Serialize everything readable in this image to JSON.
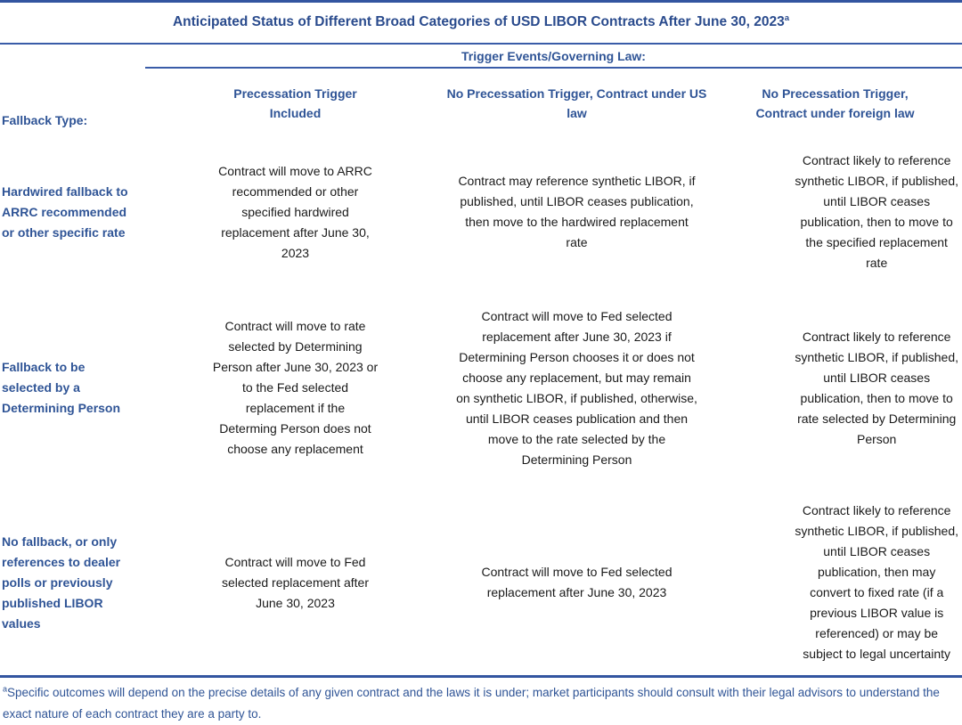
{
  "title": {
    "text": "Anticipated Status of Different Broad Categories of USD LIBOR Contracts After June 30, 2023",
    "superscript": "a"
  },
  "table": {
    "group_header": "Trigger Events/Governing Law:",
    "row_header_label": "Fallback Type:",
    "columns": [
      "Precessation Trigger\nIncluded",
      "No Precessation Trigger, Contract under US\nlaw",
      "No Precessation Trigger,\nContract under foreign law"
    ],
    "rows": [
      {
        "label": "Hardwired fallback to\nARRC recommended\nor other specific rate",
        "cells": [
          "Contract will move to ARRC\nrecommended or other\nspecified hardwired\nreplacement after June 30,\n2023",
          "Contract may reference synthetic LIBOR, if\npublished, until LIBOR ceases publication,\nthen  move to the hardwired replacement\nrate",
          "Contract likely to reference\nsynthetic LIBOR, if published,\nuntil LIBOR ceases\npublication, then to move to\nthe specified replacement\nrate"
        ]
      },
      {
        "label": "Fallback to be\nselected by a\nDetermining Person",
        "cells": [
          "Contract will move to rate\nselected by Determining\nPerson after June 30, 2023 or\nto the Fed selected\nreplacement if the\nDeterming Person does not\nchoose any replacement",
          "Contract will move to Fed selected\nreplacement after June 30, 2023 if\nDetermining Person chooses it or does not\nchoose any replacement, but may remain\non synthetic LIBOR, if published, otherwise,\nuntil LIBOR ceases publication and then\nmove to the rate selected by the\nDetermining Person",
          "Contract likely to reference\nsynthetic LIBOR, if published,\nuntil LIBOR ceases\npublication, then to move to\nrate selected by Determining\nPerson"
        ]
      },
      {
        "label": "No fallback, or only\nreferences to dealer\npolls or previously\npublished LIBOR\nvalues",
        "cells": [
          "Contract will move to Fed\nselected replacement after\nJune 30, 2023",
          "Contract will move to Fed selected\nreplacement after June 30, 2023",
          "Contract likely to reference\nsynthetic LIBOR, if published,\nuntil LIBOR ceases\npublication, then may\nconvert to fixed rate (if a\nprevious LIBOR value is\nreferenced) or may be\nsubject to legal uncertainty"
        ]
      }
    ]
  },
  "footnote": {
    "superscript": "a",
    "text": "Specific outcomes will depend on the precise details of any given contract and the laws it is under; market participants should consult with their legal advisors to understand the exact nature of each contract they are a party to."
  },
  "colors": {
    "heading_navy": "#2a4b8d",
    "label_blue": "#2f5496",
    "rule_blue": "#3a5ca8",
    "body_text": "#1a1a1a"
  }
}
